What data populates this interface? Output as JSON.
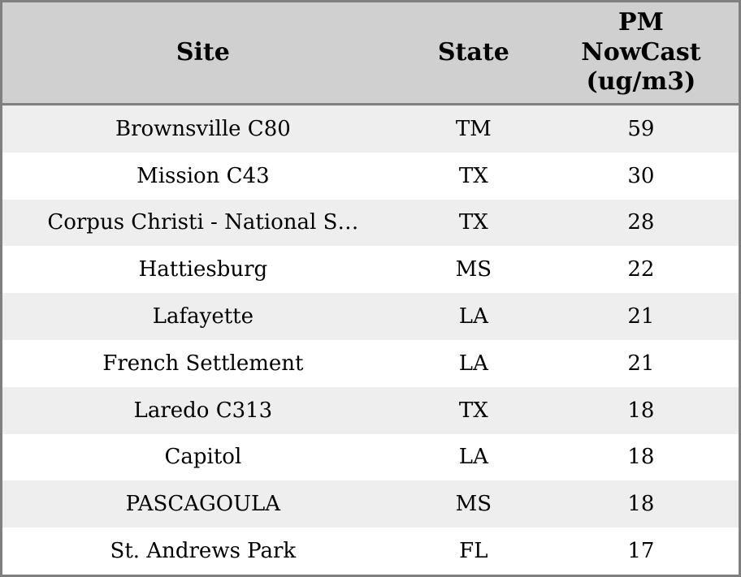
{
  "chart_data": {
    "type": "table",
    "columns": [
      {
        "key": "site",
        "label": "Site"
      },
      {
        "key": "state",
        "label": "State"
      },
      {
        "key": "value",
        "label": "PM\nNowCast\n(ug/m3)"
      }
    ],
    "rows": [
      {
        "site": "Brownsville C80",
        "state": "TM",
        "value": "59"
      },
      {
        "site": "Mission C43",
        "state": "TX",
        "value": "30"
      },
      {
        "site": "Corpus Christi - National S…",
        "state": "TX",
        "value": "28"
      },
      {
        "site": "Hattiesburg",
        "state": "MS",
        "value": "22"
      },
      {
        "site": "Lafayette",
        "state": "LA",
        "value": "21"
      },
      {
        "site": "French Settlement",
        "state": "LA",
        "value": "21"
      },
      {
        "site": "Laredo C313",
        "state": "TX",
        "value": "18"
      },
      {
        "site": "Capitol",
        "state": "LA",
        "value": "18"
      },
      {
        "site": "PASCAGOULA",
        "state": "MS",
        "value": "18"
      },
      {
        "site": "St. Andrews Park",
        "state": "FL",
        "value": "17"
      }
    ],
    "layout": {
      "grid": false,
      "zebra_striping": true,
      "alignment": "center"
    }
  },
  "colors": {
    "header_bg": "#d0d0d0",
    "border": "#7f7f7f",
    "row_alt_bg": "#eeeeee",
    "row_bg": "#ffffff",
    "text": "#000000"
  }
}
